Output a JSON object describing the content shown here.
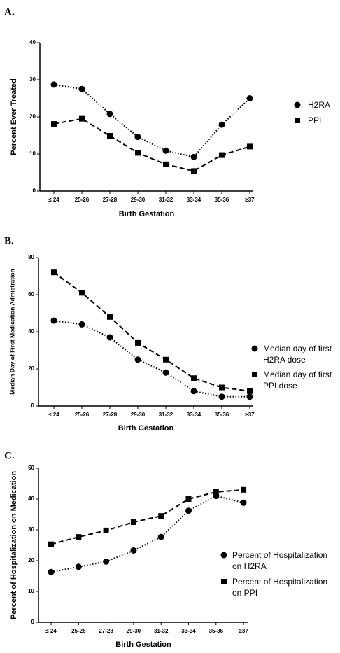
{
  "chart_data": [
    {
      "type": "line",
      "title": "A.",
      "xlabel": "Birth Gestation",
      "ylabel": "Percent Ever Treated",
      "categories": [
        "≤ 24",
        "25-26",
        "27-28",
        "29-30",
        "31-32",
        "33-34",
        "35-36",
        "≥37"
      ],
      "series": [
        {
          "name": "H2RA",
          "color": "#000000",
          "marker": "circle",
          "linestyle": "dotted",
          "values": [
            28.7,
            27.5,
            20.8,
            14.6,
            10.9,
            9.2,
            17.9,
            25.0
          ]
        },
        {
          "name": "PPI",
          "color": "#000000",
          "marker": "square",
          "linestyle": "dashed",
          "values": [
            18.1,
            19.5,
            14.9,
            10.3,
            7.2,
            5.4,
            9.7,
            12.0
          ]
        }
      ],
      "ylim": [
        0,
        40
      ],
      "yticks": [
        0,
        10,
        20,
        30,
        40
      ],
      "legend": "right"
    },
    {
      "type": "line",
      "title": "B.",
      "xlabel": "Birth Gestation",
      "ylabel": "Median Day of First Medication Admistration",
      "categories": [
        "≤ 24",
        "25-26",
        "27-28",
        "29-30",
        "31-32",
        "33-34",
        "35-36",
        "≥37"
      ],
      "series": [
        {
          "name": "Median day of first H2RA dose",
          "color": "#000000",
          "marker": "circle",
          "linestyle": "dotted",
          "values": [
            46,
            44,
            37,
            25,
            18,
            8,
            5,
            5
          ]
        },
        {
          "name": "Median day of first PPI dose",
          "color": "#000000",
          "marker": "square",
          "linestyle": "dashed",
          "values": [
            72,
            61,
            48,
            34,
            25,
            15,
            10,
            8
          ]
        }
      ],
      "ylim": [
        0,
        80
      ],
      "yticks": [
        0,
        20,
        40,
        60,
        80
      ],
      "legend": "right"
    },
    {
      "type": "line",
      "title": "C.",
      "xlabel": "Birth Gestation",
      "ylabel": "Percent of Hospitalization on Medication",
      "categories": [
        "≤ 24",
        "25-26",
        "27-28",
        "29-30",
        "31-32",
        "33-34",
        "35-36",
        "≥37"
      ],
      "series": [
        {
          "name": "Percent of Hospitalization on H2RA",
          "color": "#000000",
          "marker": "circle",
          "linestyle": "dotted",
          "values": [
            16.3,
            18.0,
            19.7,
            23.3,
            27.7,
            36.2,
            41.0,
            38.8
          ]
        },
        {
          "name": "Percent of Hospitalization on PPI",
          "color": "#000000",
          "marker": "square",
          "linestyle": "dashed",
          "values": [
            25.3,
            27.7,
            29.8,
            32.5,
            34.5,
            40.0,
            42.3,
            43.0
          ]
        }
      ],
      "ylim": [
        0,
        50
      ],
      "yticks": [
        0,
        10,
        20,
        30,
        40,
        50
      ],
      "legend": "right"
    }
  ]
}
